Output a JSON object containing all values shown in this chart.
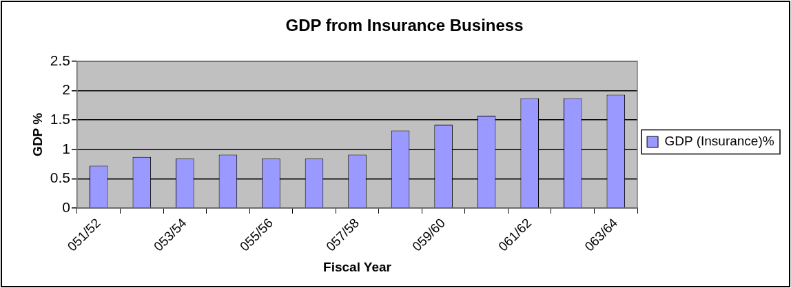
{
  "chart_data": {
    "type": "bar",
    "title": "GDP from Insurance Business",
    "xlabel": "Fiscal Year",
    "ylabel": "GDP %",
    "categories": [
      "051/52",
      null,
      "053/54",
      null,
      "055/56",
      null,
      "057/58",
      null,
      "059/60",
      null,
      "061/62",
      null,
      "063/64"
    ],
    "series": [
      {
        "name": "GDP (Insurance)%",
        "color": "#9999ff",
        "values": [
          0.72,
          0.87,
          0.84,
          0.91,
          0.84,
          0.84,
          0.91,
          1.32,
          1.42,
          1.57,
          1.87,
          1.87,
          1.93
        ]
      }
    ],
    "ylim": [
      0,
      2.5
    ],
    "yticks": [
      0,
      0.5,
      1,
      1.5,
      2,
      2.5
    ],
    "grid": "y",
    "legend": "right"
  }
}
